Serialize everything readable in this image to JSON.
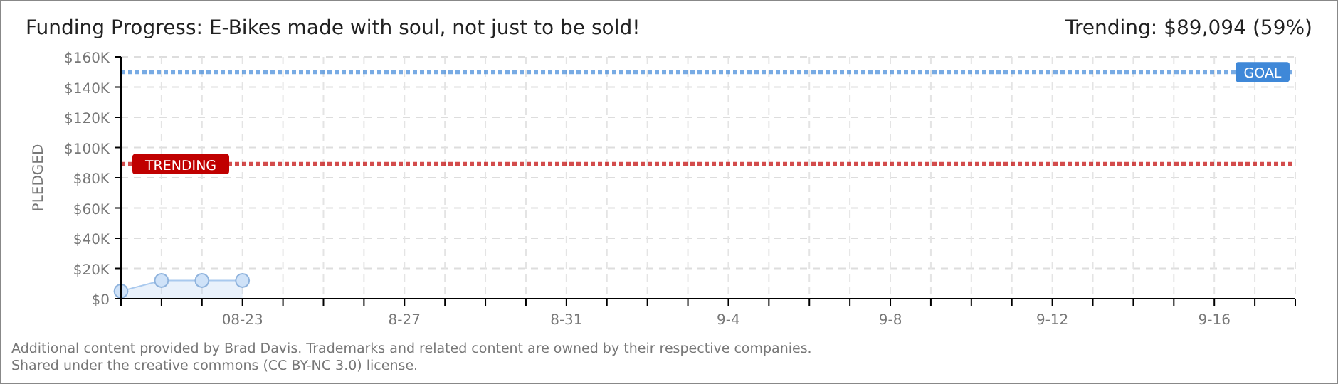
{
  "chart_data": {
    "type": "area",
    "title": "Funding Progress: E-Bikes made with soul, not just to be sold!",
    "ylabel": "PLEDGED",
    "annotations": [
      "Trending:  $89,094 (59%)",
      "Additional content provided by Brad Davis. Trademarks and related content are owned by their respective companies.",
      "Shared under the creative commons (CC BY-NC 3.0) license."
    ],
    "x": [
      "--08-20",
      "--08-21",
      "--08-22",
      "--08-23"
    ],
    "series": [
      {
        "color": "#a9c9ee",
        "values": [
          5000,
          12000,
          12000,
          12000
        ]
      }
    ],
    "marker": "circle",
    "grid": true,
    "xlim": [
      "--08-20",
      "--09-18"
    ],
    "xticks": [
      {
        "value": "--08-20",
        "label": null
      },
      {
        "value": "--08-21",
        "label": null
      },
      {
        "value": "--08-22",
        "label": null
      },
      {
        "value": "--08-23",
        "label": "08-23"
      },
      {
        "value": "--08-24",
        "label": null
      },
      {
        "value": "--08-25",
        "label": null
      },
      {
        "value": "--08-26",
        "label": null
      },
      {
        "value": "--08-27",
        "label": "8-27"
      },
      {
        "value": "--08-28",
        "label": null
      },
      {
        "value": "--08-29",
        "label": null
      },
      {
        "value": "--08-30",
        "label": null
      },
      {
        "value": "--08-31",
        "label": "8-31"
      },
      {
        "value": "--09-01",
        "label": null
      },
      {
        "value": "--09-02",
        "label": null
      },
      {
        "value": "--09-03",
        "label": null
      },
      {
        "value": "--09-04",
        "label": "9-4"
      },
      {
        "value": "--09-05",
        "label": null
      },
      {
        "value": "--09-06",
        "label": null
      },
      {
        "value": "--09-07",
        "label": null
      },
      {
        "value": "--09-08",
        "label": "9-8"
      },
      {
        "value": "--09-09",
        "label": null
      },
      {
        "value": "--09-10",
        "label": null
      },
      {
        "value": "--09-11",
        "label": null
      },
      {
        "value": "--09-12",
        "label": "9-12"
      },
      {
        "value": "--09-13",
        "label": null
      },
      {
        "value": "--09-14",
        "label": null
      },
      {
        "value": "--09-15",
        "label": null
      },
      {
        "value": "--09-16",
        "label": "9-16"
      },
      {
        "value": "--09-17",
        "label": null
      },
      {
        "value": "--09-18",
        "label": null
      }
    ],
    "ylim": [
      0,
      160000
    ],
    "yticks": [
      {
        "value": 0,
        "label": "$0"
      },
      {
        "value": 20000,
        "label": "$20K"
      },
      {
        "value": 40000,
        "label": "$40K"
      },
      {
        "value": 60000,
        "label": "$60K"
      },
      {
        "value": 80000,
        "label": "$80K"
      },
      {
        "value": 100000,
        "label": "$100K"
      },
      {
        "value": 120000,
        "label": "$120K"
      },
      {
        "value": 140000,
        "label": "$140K"
      },
      {
        "value": 160000,
        "label": "$160K"
      }
    ],
    "ref_lines": [
      {
        "axis": "y",
        "value": 150000,
        "label": "GOAL",
        "color": "#3f88d8",
        "line_style": "dotted"
      },
      {
        "axis": "y",
        "value": 89094,
        "label": "TRENDING",
        "color": "#c00000",
        "line_style": "dotted"
      }
    ]
  }
}
